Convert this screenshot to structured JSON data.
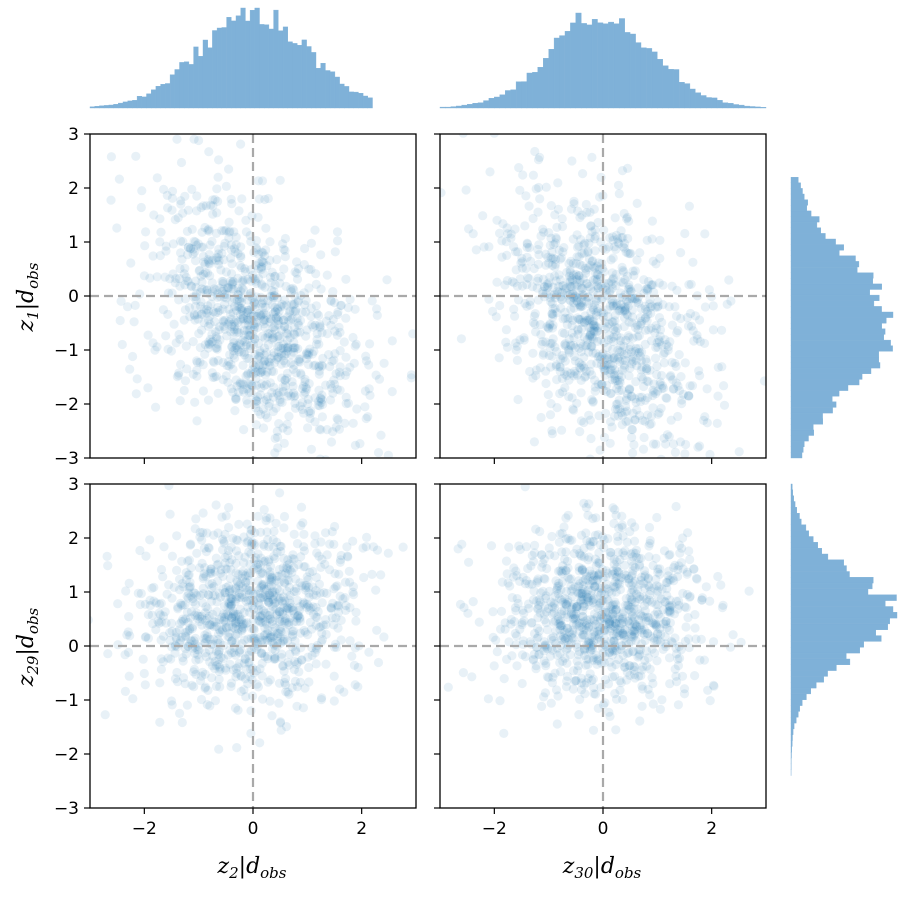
{
  "chart_data": {
    "type": "scatter",
    "layout": "2x2 grid of scatter panels with marginal histograms on top (x) and right (y)",
    "x_range": [
      -3,
      3
    ],
    "y_range": [
      -3,
      3
    ],
    "x_ticks": [
      -2,
      0,
      2
    ],
    "y_ticks": [
      -3,
      -2,
      -1,
      0,
      1,
      2,
      3
    ],
    "x_tick_labels": [
      "−2",
      "0",
      "2"
    ],
    "y_tick_labels": [
      "−3",
      "−2",
      "−1",
      "0",
      "1",
      "2",
      "3"
    ],
    "reference_lines": {
      "x": 0,
      "y": 0,
      "style": "dashed",
      "color": "#a9a9a9"
    },
    "point_color": "#1f77b4",
    "point_alpha": 0.1,
    "hist_color": "#7fb1d8",
    "n_points_per_panel": 1000,
    "x_labels": [
      {
        "var": "z",
        "sub": "2",
        "bar": "|",
        "cond": "d",
        "cond_sub": "obs"
      },
      {
        "var": "z",
        "sub": "30",
        "bar": "|",
        "cond": "d",
        "cond_sub": "obs"
      }
    ],
    "y_labels": [
      {
        "var": "z",
        "sub": "1",
        "bar": "|",
        "cond": "d",
        "cond_sub": "obs"
      },
      {
        "var": "z",
        "sub": "29",
        "bar": "|",
        "cond": "d",
        "cond_sub": "obs"
      }
    ],
    "panels": [
      {
        "row": 0,
        "col": 0,
        "x_var": "z2",
        "y_var": "z1",
        "x_mean": 0.0,
        "x_std": 1.0,
        "y_mean": -0.5,
        "y_std": 1.15,
        "correlation": -0.45
      },
      {
        "row": 0,
        "col": 1,
        "x_var": "z30",
        "y_var": "z1",
        "x_mean": 0.0,
        "x_std": 0.95,
        "y_mean": -0.5,
        "y_std": 1.15,
        "correlation": -0.35
      },
      {
        "row": 1,
        "col": 0,
        "x_var": "z2",
        "y_var": "z29",
        "x_mean": 0.0,
        "x_std": 1.0,
        "y_mean": 0.6,
        "y_std": 0.8,
        "correlation": 0.15
      },
      {
        "row": 1,
        "col": 1,
        "x_var": "z30",
        "y_var": "z29",
        "x_mean": 0.0,
        "x_std": 0.95,
        "y_mean": 0.6,
        "y_std": 0.8,
        "correlation": 0.0
      }
    ],
    "marginals": {
      "top": [
        {
          "var": "z2",
          "mean": 0.0,
          "std": 1.0,
          "range": [
            -3,
            2.2
          ],
          "bins": 60
        },
        {
          "var": "z30",
          "mean": 0.0,
          "std": 0.95,
          "range": [
            -3,
            3
          ],
          "bins": 60
        }
      ],
      "right": [
        {
          "var": "z1",
          "mean": -0.5,
          "std": 1.15,
          "range": [
            -3,
            2.2
          ],
          "bins": 50
        },
        {
          "var": "z29",
          "mean": 0.6,
          "std": 0.8,
          "range": [
            -2.4,
            3
          ],
          "bins": 50
        }
      ]
    }
  }
}
